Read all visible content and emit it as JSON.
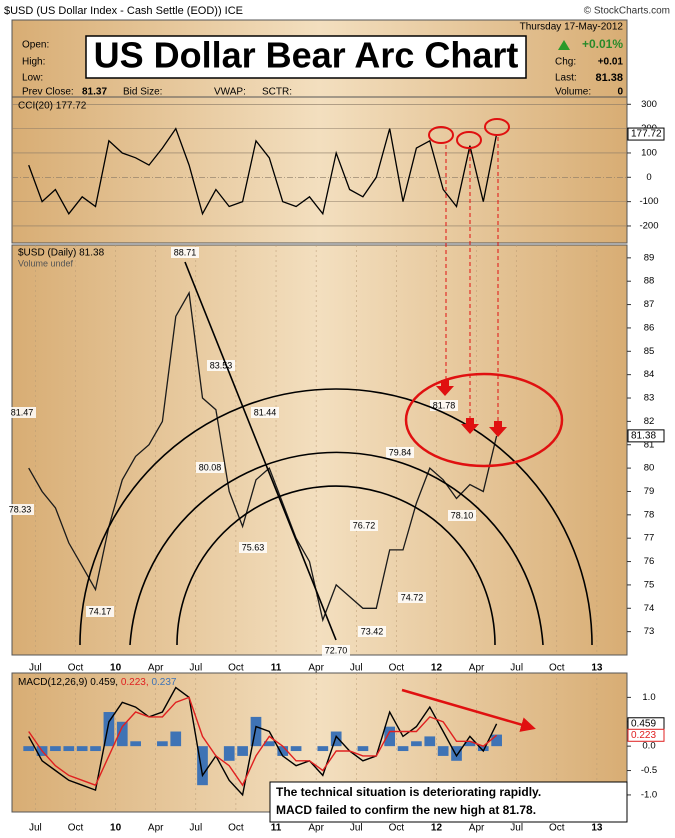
{
  "header": {
    "symbol_line": "$USD (US Dollar Index - Cash Settle (EOD)) ICE",
    "credit": "© StockCharts.com",
    "date": "Thursday 17-May-2012",
    "change_pct": "+0.01%",
    "open_label": "Open:",
    "high_label": "High:",
    "low_label": "Low:",
    "chg_label": "Chg:",
    "chg": "+0.01",
    "last_label": "Last:",
    "prev_close_label": "Prev Close:",
    "prev_close": 81.37,
    "bid_size_label": "Bid Size:",
    "vwap_label": "VWAP:",
    "sctr_label": "SCTR:",
    "volume_label": "Volume:",
    "volume": 0
  },
  "title": "US Dollar Bear Arc Chart",
  "note": [
    "The technical situation is deteriorating rapidly.",
    "MACD failed to confirm the new high at 81.78."
  ],
  "chart_data": [
    {
      "type": "line",
      "label": "CCI(20) 177.72",
      "color": "#000000",
      "fill_above": "#5a7a3a",
      "fill_below": "#a0704a",
      "categories": [
        null,
        "Jul",
        null,
        null,
        "Oct",
        null,
        null,
        "10",
        null,
        null,
        "Apr",
        null,
        null,
        "Jul",
        null,
        null,
        "Oct",
        null,
        null,
        "11",
        null,
        null,
        "Apr",
        null,
        null,
        "Jul",
        null,
        null,
        "Oct",
        null,
        null,
        "12",
        null,
        null,
        "Apr",
        null,
        null,
        "Jul",
        null,
        null,
        "Oct",
        null,
        null,
        "13",
        null,
        null
      ],
      "values": [
        50,
        -100,
        -50,
        -150,
        -80,
        -120,
        150,
        100,
        80,
        50,
        120,
        200,
        50,
        -150,
        -50,
        -120,
        -100,
        150,
        80,
        -100,
        -120,
        -80,
        -150,
        100,
        -50,
        -80,
        0,
        200,
        -100,
        120,
        150,
        -50,
        -120,
        130,
        -100,
        177.72,
        null,
        null,
        null,
        null,
        null,
        null,
        null,
        null,
        null,
        null
      ],
      "ylim": [
        -270,
        330
      ],
      "yticks": [
        300,
        200,
        100,
        0,
        -100,
        -200
      ],
      "grid": true
    },
    {
      "type": "line",
      "label": "$USD (Daily) 81.38",
      "sublabel": "Volume undef",
      "color": "#1a1a1a",
      "categories": [
        null,
        "Jul",
        null,
        null,
        "Oct",
        null,
        null,
        "10",
        null,
        null,
        "Apr",
        null,
        null,
        "Jul",
        null,
        null,
        "Oct",
        null,
        null,
        "11",
        null,
        null,
        "Apr",
        null,
        null,
        "Jul",
        null,
        null,
        "Oct",
        null,
        null,
        "12",
        null,
        null,
        "Apr",
        null,
        null,
        "Jul",
        null,
        null,
        "Oct",
        null,
        null,
        "13",
        null,
        null
      ],
      "values": [
        80.0,
        79.0,
        78.3,
        76.8,
        75.8,
        74.8,
        77.5,
        79.5,
        80.5,
        81.0,
        82.0,
        86.5,
        87.5,
        83.0,
        82.5,
        79.0,
        77.5,
        79.5,
        80.0,
        78.5,
        77.0,
        76.0,
        73.5,
        75.0,
        74.5,
        74.0,
        74.0,
        76.5,
        76.5,
        78.5,
        80.0,
        79.5,
        78.7,
        79.3,
        79.0,
        81.38,
        null,
        null,
        null,
        null,
        null,
        null,
        null,
        null,
        null,
        null
      ],
      "ylim": [
        72,
        89.55
      ],
      "yticks": [
        73,
        74,
        75,
        76,
        77,
        78,
        79,
        80,
        81,
        82,
        83,
        84,
        85,
        86,
        87,
        88,
        89
      ],
      "grid": false,
      "point_labels": [
        {
          "value": 81.47,
          "label": "81.47"
        },
        {
          "value": 78.33,
          "label": "78.33"
        },
        {
          "value": 74.17,
          "label": "74.17"
        },
        {
          "value": 88.71,
          "label": "88.71"
        },
        {
          "value": 83.53,
          "label": "83.53"
        },
        {
          "value": 80.08,
          "label": "80.08"
        },
        {
          "value": 81.44,
          "label": "81.44"
        },
        {
          "value": 75.63,
          "label": "75.63"
        },
        {
          "value": 72.7,
          "label": "72.70"
        },
        {
          "value": 76.72,
          "label": "76.72"
        },
        {
          "value": 73.42,
          "label": "73.42"
        },
        {
          "value": 79.84,
          "label": "79.84"
        },
        {
          "value": 74.72,
          "label": "74.72"
        },
        {
          "value": 81.78,
          "label": "81.78"
        },
        {
          "value": 78.1,
          "label": "78.10"
        }
      ]
    },
    {
      "type": "macd",
      "legend_parts": [
        "MACD(12,26,9) 0.459,",
        "0.223,",
        "0.237"
      ],
      "categories": [
        null,
        "Jul",
        null,
        null,
        "Oct",
        null,
        null,
        "10",
        null,
        null,
        "Apr",
        null,
        null,
        "Jul",
        null,
        null,
        "Oct",
        null,
        null,
        "11",
        null,
        null,
        "Apr",
        null,
        null,
        "Jul",
        null,
        null,
        "Oct",
        null,
        null,
        "12",
        null,
        null,
        "Apr",
        null,
        null,
        "Jul",
        null,
        null,
        "Oct",
        null,
        null,
        "13",
        null,
        null
      ],
      "series": [
        {
          "name": "MACD",
          "color": "#000000",
          "values": [
            0.2,
            -0.3,
            -0.5,
            -0.7,
            -0.8,
            -0.9,
            0.5,
            0.9,
            0.8,
            0.6,
            0.7,
            1.2,
            1.0,
            -0.6,
            -0.2,
            -0.7,
            -1.0,
            0.4,
            0.3,
            -0.2,
            -0.4,
            -0.3,
            -0.6,
            0.2,
            -0.1,
            -0.3,
            -0.2,
            0.7,
            0.2,
            0.4,
            0.8,
            0.3,
            -0.2,
            0.2,
            -0.1,
            0.459,
            null,
            null,
            null,
            null,
            null,
            null,
            null,
            null,
            null,
            null
          ]
        },
        {
          "name": "Signal",
          "color": "#e02020",
          "values": [
            0.3,
            -0.1,
            -0.4,
            -0.6,
            -0.7,
            -0.8,
            -0.2,
            0.4,
            0.7,
            0.6,
            0.6,
            0.9,
            1.0,
            0.2,
            -0.2,
            -0.4,
            -0.8,
            -0.2,
            0.2,
            0.0,
            -0.3,
            -0.3,
            -0.5,
            -0.1,
            -0.1,
            -0.2,
            -0.2,
            0.3,
            0.3,
            0.3,
            0.6,
            0.5,
            0.1,
            0.1,
            0.0,
            0.223,
            null,
            null,
            null,
            null,
            null,
            null,
            null,
            null,
            null,
            null
          ]
        },
        {
          "name": "Histogram",
          "color": "#3f73b5",
          "values": [
            -0.1,
            -0.2,
            -0.1,
            -0.1,
            -0.1,
            -0.1,
            0.7,
            0.5,
            0.1,
            0,
            0.1,
            0.3,
            0,
            -0.8,
            0,
            -0.3,
            -0.2,
            0.6,
            0.1,
            -0.2,
            -0.1,
            0,
            -0.1,
            0.3,
            0,
            -0.1,
            0,
            0.4,
            -0.1,
            0.1,
            0.2,
            -0.2,
            -0.3,
            0.1,
            -0.1,
            0.237,
            null,
            null,
            null,
            null,
            null,
            null,
            null,
            null,
            null,
            null
          ]
        }
      ],
      "ylim": [
        -1.35,
        1.5
      ],
      "yticks": [
        {
          "value": 1,
          "label": "1.0"
        },
        {
          "value": 0.5,
          "label": "0.5"
        },
        {
          "value": 0,
          "label": "0.0"
        },
        {
          "value": -0.5,
          "label": "-0.5"
        },
        {
          "value": -1,
          "label": "-1.0"
        }
      ],
      "grid": false
    }
  ]
}
